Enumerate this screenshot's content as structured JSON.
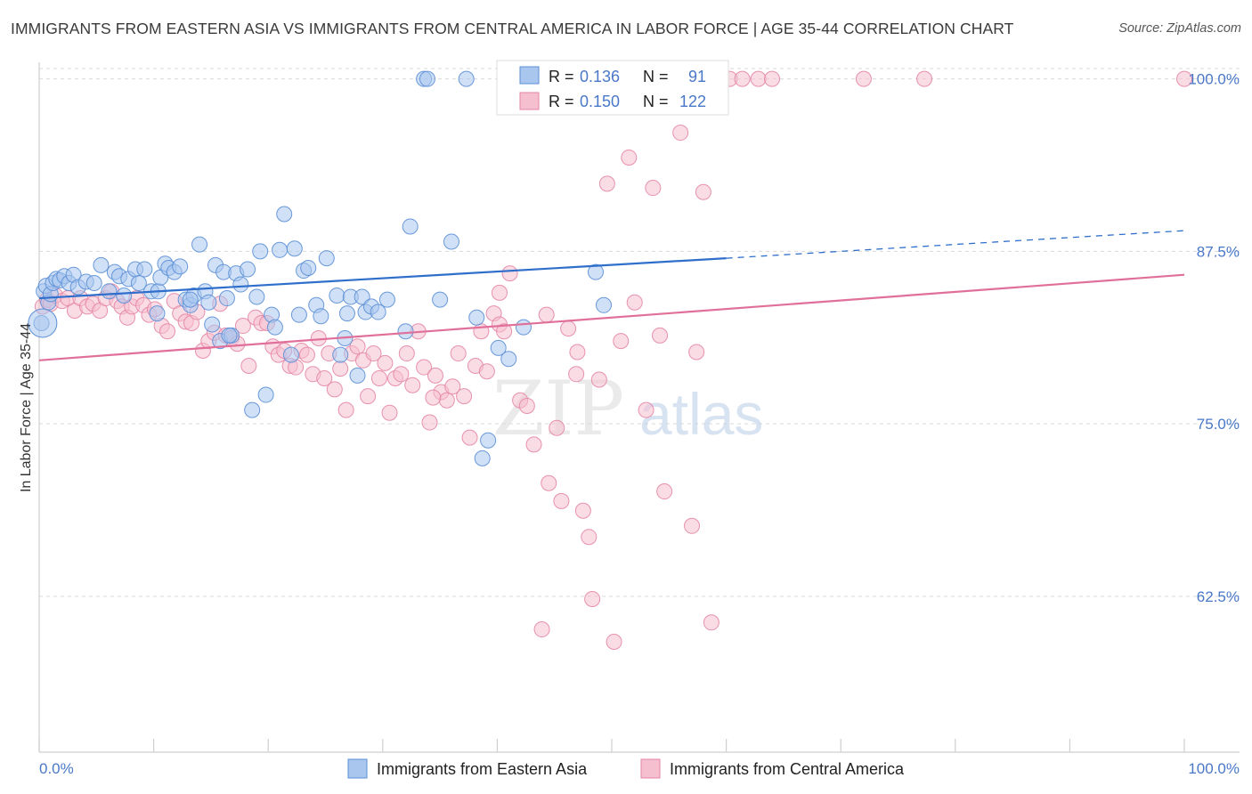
{
  "title": "IMMIGRANTS FROM EASTERN ASIA VS IMMIGRANTS FROM CENTRAL AMERICA IN LABOR FORCE | AGE 35-44 CORRELATION CHART",
  "source": "Source: ZipAtlas.com",
  "watermark": {
    "part1": "ZIP",
    "part2": "atlas"
  },
  "colors": {
    "blue_fill": "#a9c7ee",
    "blue_stroke": "#5b8fd6",
    "blue_line": "#2f6fcb",
    "pink_fill": "#f6bfd0",
    "pink_stroke": "#e486a6",
    "pink_line": "#e0709a",
    "tick_text": "#4a78c8",
    "grid": "#d9d9d9"
  },
  "stats_box": {
    "rows": [
      {
        "r_label": "R =",
        "r_value": "0.136",
        "n_label": "N =",
        "n_value": "91"
      },
      {
        "r_label": "R =",
        "r_value": "0.150",
        "n_label": "N =",
        "n_value": "122"
      }
    ]
  },
  "legend": [
    {
      "label": "Immigrants from Eastern Asia"
    },
    {
      "label": "Immigrants from Central America"
    }
  ],
  "chart_data": {
    "type": "scatter",
    "title": "IMMIGRANTS FROM EASTERN ASIA VS IMMIGRANTS FROM CENTRAL AMERICA IN LABOR FORCE | AGE 35-44 CORRELATION CHART",
    "xlabel": "",
    "ylabel": "In Labor Force | Age 35-44",
    "xlim": [
      0,
      100
    ],
    "ylim": [
      51.2,
      101.2
    ],
    "x_tick_labels": [
      "0.0%",
      "100.0%"
    ],
    "y_ticks": [
      62.5,
      75.0,
      87.5,
      100.0
    ],
    "y_tick_labels": [
      "62.5%",
      "75.0%",
      "87.5%",
      "100.0%"
    ],
    "grid": "horizontal dashed",
    "legend_position": "bottom-center",
    "series": [
      {
        "name": "Immigrants from Eastern Asia",
        "r": 0.136,
        "n": 91,
        "trend": {
          "x0": 0,
          "y0": 84.1,
          "x1": 60,
          "y1": 87.0,
          "dashed_to_x": 100,
          "dashed_to_y": 89.0
        },
        "points": [
          [
            0.2,
            82.3
          ],
          [
            0.4,
            84.6
          ],
          [
            0.6,
            85.0
          ],
          [
            0.8,
            83.8
          ],
          [
            1.0,
            84.4
          ],
          [
            1.2,
            85.2
          ],
          [
            1.5,
            85.5
          ],
          [
            1.8,
            85.4
          ],
          [
            2.2,
            85.7
          ],
          [
            2.6,
            85.2
          ],
          [
            3.0,
            85.8
          ],
          [
            3.4,
            84.9
          ],
          [
            4.1,
            85.3
          ],
          [
            4.8,
            85.2
          ],
          [
            5.4,
            86.5
          ],
          [
            6.1,
            84.6
          ],
          [
            6.6,
            86.0
          ],
          [
            7.0,
            85.7
          ],
          [
            7.4,
            84.3
          ],
          [
            7.8,
            85.5
          ],
          [
            8.4,
            86.2
          ],
          [
            8.7,
            85.2
          ],
          [
            9.2,
            86.2
          ],
          [
            9.8,
            84.6
          ],
          [
            10.4,
            84.6
          ],
          [
            10.3,
            83.0
          ],
          [
            10.6,
            85.6
          ],
          [
            11.0,
            86.6
          ],
          [
            11.3,
            86.3
          ],
          [
            11.8,
            86.0
          ],
          [
            12.3,
            86.4
          ],
          [
            12.8,
            84.0
          ],
          [
            13.2,
            83.6
          ],
          [
            13.5,
            84.3
          ],
          [
            14.0,
            88.0
          ],
          [
            14.5,
            84.6
          ],
          [
            14.8,
            83.8
          ],
          [
            15.1,
            82.2
          ],
          [
            15.4,
            86.5
          ],
          [
            15.8,
            81.0
          ],
          [
            16.1,
            86.0
          ],
          [
            16.4,
            84.1
          ],
          [
            16.8,
            81.4
          ],
          [
            17.2,
            85.9
          ],
          [
            17.6,
            85.1
          ],
          [
            18.2,
            86.2
          ],
          [
            18.6,
            76.0
          ],
          [
            19.0,
            84.2
          ],
          [
            19.3,
            87.5
          ],
          [
            19.8,
            77.1
          ],
          [
            20.3,
            82.9
          ],
          [
            20.6,
            82.0
          ],
          [
            21.0,
            87.6
          ],
          [
            21.4,
            90.2
          ],
          [
            22.0,
            80.0
          ],
          [
            22.3,
            87.7
          ],
          [
            22.7,
            82.9
          ],
          [
            23.1,
            86.1
          ],
          [
            23.5,
            86.3
          ],
          [
            24.2,
            83.6
          ],
          [
            24.6,
            82.8
          ],
          [
            25.1,
            87.0
          ],
          [
            26.0,
            84.3
          ],
          [
            26.3,
            80.0
          ],
          [
            26.7,
            81.2
          ],
          [
            27.2,
            84.2
          ],
          [
            27.8,
            78.5
          ],
          [
            28.2,
            84.2
          ],
          [
            28.5,
            83.1
          ],
          [
            29.0,
            83.5
          ],
          [
            29.6,
            83.1
          ],
          [
            30.4,
            84.0
          ],
          [
            32.0,
            81.7
          ],
          [
            32.4,
            89.3
          ],
          [
            33.6,
            100.0
          ],
          [
            33.9,
            100.0
          ],
          [
            36.0,
            88.2
          ],
          [
            37.3,
            100.0
          ],
          [
            38.2,
            82.7
          ],
          [
            38.7,
            72.5
          ],
          [
            39.2,
            73.8
          ],
          [
            40.1,
            80.5
          ],
          [
            42.3,
            82.0
          ],
          [
            48.2,
            100.0
          ],
          [
            48.6,
            86.0
          ],
          [
            49.3,
            83.6
          ],
          [
            41.0,
            79.7
          ],
          [
            35.0,
            84.0
          ],
          [
            26.9,
            83.0
          ],
          [
            16.6,
            81.4
          ],
          [
            13.2,
            84.0
          ]
        ]
      },
      {
        "name": "Immigrants from Central America",
        "r": 0.15,
        "n": 122,
        "trend": {
          "x0": 0,
          "y0": 79.6,
          "x1": 100,
          "y1": 85.8
        },
        "points": [
          [
            0.3,
            83.5
          ],
          [
            0.7,
            84.0
          ],
          [
            1.0,
            83.7
          ],
          [
            1.4,
            84.3
          ],
          [
            2.0,
            83.9
          ],
          [
            2.5,
            84.1
          ],
          [
            3.1,
            83.2
          ],
          [
            3.6,
            84.1
          ],
          [
            4.2,
            83.5
          ],
          [
            4.7,
            83.7
          ],
          [
            5.3,
            83.2
          ],
          [
            5.8,
            84.1
          ],
          [
            6.3,
            84.6
          ],
          [
            6.8,
            83.9
          ],
          [
            7.2,
            83.5
          ],
          [
            7.7,
            82.7
          ],
          [
            8.1,
            83.5
          ],
          [
            8.5,
            84.1
          ],
          [
            9.1,
            83.6
          ],
          [
            9.6,
            82.9
          ],
          [
            10.1,
            83.3
          ],
          [
            10.7,
            82.1
          ],
          [
            11.2,
            81.7
          ],
          [
            11.8,
            83.9
          ],
          [
            12.3,
            83.0
          ],
          [
            12.8,
            82.4
          ],
          [
            13.3,
            82.3
          ],
          [
            13.8,
            83.1
          ],
          [
            14.3,
            80.3
          ],
          [
            14.8,
            81.0
          ],
          [
            15.3,
            81.6
          ],
          [
            15.8,
            83.7
          ],
          [
            16.3,
            81.4
          ],
          [
            16.8,
            81.2
          ],
          [
            17.3,
            80.8
          ],
          [
            17.8,
            82.1
          ],
          [
            18.3,
            79.2
          ],
          [
            18.9,
            82.7
          ],
          [
            19.4,
            82.3
          ],
          [
            19.9,
            82.3
          ],
          [
            20.4,
            80.6
          ],
          [
            20.9,
            80.0
          ],
          [
            21.4,
            80.3
          ],
          [
            21.9,
            79.2
          ],
          [
            22.4,
            79.1
          ],
          [
            22.9,
            80.3
          ],
          [
            23.4,
            80.0
          ],
          [
            23.9,
            78.6
          ],
          [
            24.4,
            81.2
          ],
          [
            24.9,
            78.3
          ],
          [
            25.3,
            80.1
          ],
          [
            25.8,
            77.5
          ],
          [
            26.3,
            79.0
          ],
          [
            26.8,
            76.0
          ],
          [
            27.3,
            80.1
          ],
          [
            27.8,
            80.6
          ],
          [
            28.3,
            79.6
          ],
          [
            28.7,
            77.0
          ],
          [
            29.2,
            80.1
          ],
          [
            29.7,
            78.3
          ],
          [
            30.2,
            79.4
          ],
          [
            30.6,
            75.8
          ],
          [
            31.1,
            78.3
          ],
          [
            31.6,
            78.6
          ],
          [
            32.1,
            80.1
          ],
          [
            32.6,
            77.8
          ],
          [
            33.1,
            81.7
          ],
          [
            33.6,
            79.1
          ],
          [
            34.1,
            75.1
          ],
          [
            34.6,
            78.5
          ],
          [
            35.1,
            77.3
          ],
          [
            35.6,
            76.7
          ],
          [
            36.1,
            77.7
          ],
          [
            36.6,
            80.1
          ],
          [
            37.1,
            77.0
          ],
          [
            37.6,
            74.0
          ],
          [
            38.1,
            79.2
          ],
          [
            38.6,
            81.7
          ],
          [
            39.1,
            78.8
          ],
          [
            39.7,
            83.0
          ],
          [
            40.2,
            82.2
          ],
          [
            40.6,
            81.7
          ],
          [
            41.1,
            85.9
          ],
          [
            42.0,
            76.7
          ],
          [
            42.6,
            76.3
          ],
          [
            43.2,
            73.5
          ],
          [
            43.9,
            60.1
          ],
          [
            44.5,
            70.7
          ],
          [
            45.2,
            74.7
          ],
          [
            45.6,
            69.4
          ],
          [
            46.2,
            81.9
          ],
          [
            47.0,
            80.2
          ],
          [
            47.5,
            68.7
          ],
          [
            48.0,
            66.8
          ],
          [
            48.3,
            62.3
          ],
          [
            48.9,
            78.2
          ],
          [
            49.6,
            92.4
          ],
          [
            50.2,
            59.2
          ],
          [
            50.8,
            81.0
          ],
          [
            51.5,
            94.3
          ],
          [
            52.0,
            83.8
          ],
          [
            53.0,
            76.0
          ],
          [
            53.6,
            92.1
          ],
          [
            54.2,
            81.4
          ],
          [
            54.6,
            70.1
          ],
          [
            55.1,
            100.0
          ],
          [
            56.0,
            96.1
          ],
          [
            57.0,
            67.6
          ],
          [
            57.4,
            80.2
          ],
          [
            58.0,
            91.8
          ],
          [
            58.7,
            60.6
          ],
          [
            60.3,
            100.0
          ],
          [
            61.4,
            100.0
          ],
          [
            62.8,
            100.0
          ],
          [
            64.0,
            100.0
          ],
          [
            72.0,
            100.0
          ],
          [
            77.3,
            100.0
          ],
          [
            100.0,
            100.0
          ],
          [
            46.9,
            78.6
          ],
          [
            40.2,
            84.5
          ],
          [
            44.3,
            82.9
          ],
          [
            34.4,
            76.9
          ]
        ]
      }
    ]
  }
}
